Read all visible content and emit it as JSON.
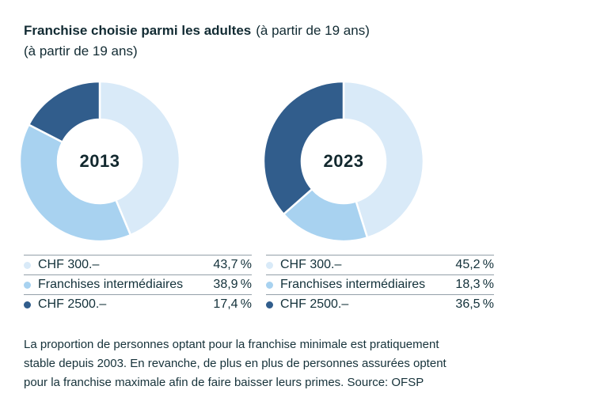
{
  "page": {
    "background": "#ffffff",
    "text_color": "#13313a"
  },
  "header": {
    "title_bold": "Franchise choisie parmi les adultes",
    "title_suffix": "(à partir de 19 ans)",
    "title_line2": "(à partir de 19 ans)"
  },
  "chart_data": {
    "type": "pie",
    "subtype": "donut",
    "unit": "%",
    "direction": "clockwise",
    "start_angle_deg": 0,
    "legend_position": "below-each-chart",
    "categories": [
      "CHF 300.–",
      "Franchises intermédiaires",
      "CHF 2500.–"
    ],
    "colors": [
      "#d9eaf8",
      "#a8d2f0",
      "#315d8c"
    ],
    "gap_color": "#ffffff",
    "outer_radius": 101,
    "inner_radius": 53,
    "series": [
      {
        "name": "2013",
        "values": [
          43.7,
          38.9,
          17.4
        ],
        "display_values": [
          "43,7 %",
          "38,9 %",
          "17,4 %"
        ]
      },
      {
        "name": "2023",
        "values": [
          45.2,
          18.3,
          36.5
        ],
        "display_values": [
          "45,2 %",
          "18,3 %",
          "36,5 %"
        ]
      }
    ]
  },
  "footer": {
    "lines": [
      "La proportion de personnes optant pour la franchise minimale est pratiquement",
      "stable depuis 2003. En revanche, de plus en plus de personnes assurées optent",
      "pour la franchise maximale afin de faire baisser leurs primes. Source: OFSP"
    ]
  }
}
